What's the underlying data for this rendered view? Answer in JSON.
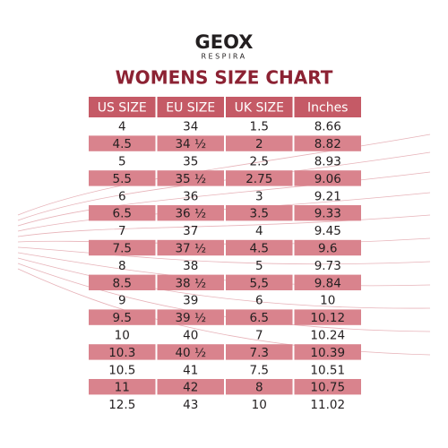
{
  "logo": {
    "brand": "GEOX",
    "tagline": "RESPIRA"
  },
  "title": "WOMENS SIZE CHART",
  "table": {
    "header": [
      "US SIZE",
      "EU SIZE",
      "UK SIZE",
      "Inches"
    ],
    "rows": [
      [
        "4",
        "34",
        "1.5",
        "8.66"
      ],
      [
        "4.5",
        "34 ½",
        "2",
        "8.82"
      ],
      [
        "5",
        "35",
        "2.5",
        "8.93"
      ],
      [
        "5.5",
        "35 ½",
        "2.75",
        "9.06"
      ],
      [
        "6",
        "36",
        "3",
        "9.21"
      ],
      [
        "6.5",
        "36 ½",
        "3.5",
        "9.33"
      ],
      [
        "7",
        "37",
        "4",
        "9.45"
      ],
      [
        "7.5",
        "37 ½",
        "4.5",
        "9.6"
      ],
      [
        "8",
        "38",
        "5",
        "9.73"
      ],
      [
        "8.5",
        "38 ½",
        "5,5",
        "9.84"
      ],
      [
        "9",
        "39",
        "6",
        "10"
      ],
      [
        "9.5",
        "39 ½",
        "6.5",
        "10.12"
      ],
      [
        "10",
        "40",
        "7",
        "10.24"
      ],
      [
        "10.3",
        "40 ½",
        "7.3",
        "10.39"
      ],
      [
        "10.5",
        "41",
        "7.5",
        "10.51"
      ],
      [
        "11",
        "42",
        "8",
        "10.75"
      ],
      [
        "12.5",
        "43",
        "10",
        "11.02"
      ]
    ]
  }
}
